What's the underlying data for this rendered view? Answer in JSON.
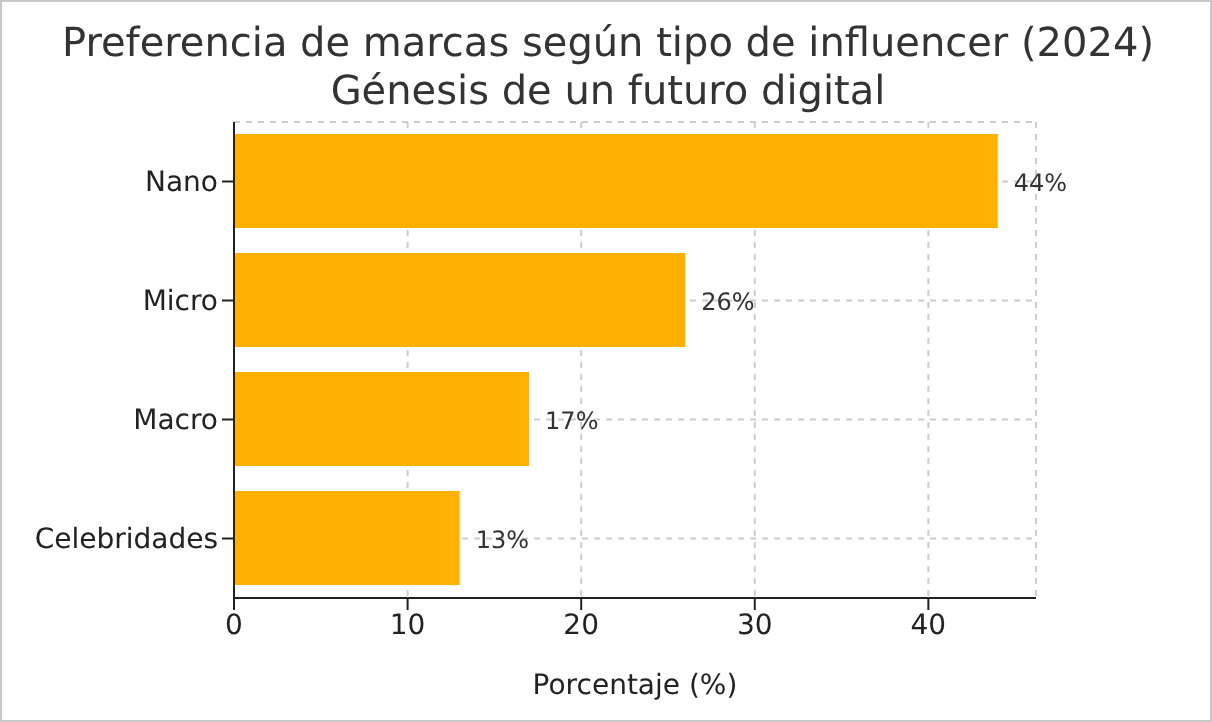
{
  "chart_data": {
    "type": "bar",
    "orientation": "horizontal",
    "title": "Preferencia de marcas según tipo de influencer (2024)",
    "subtitle": "Génesis de un futuro digital",
    "xlabel": "Porcentaje (%)",
    "categories": [
      "Nano",
      "Micro",
      "Macro",
      "Celebridades"
    ],
    "values": [
      44,
      26,
      17,
      13
    ],
    "value_labels": [
      "44%",
      "26%",
      "17%",
      "13%"
    ],
    "color": "#ffb000",
    "xlim": [
      0,
      46.2
    ],
    "xticks": [
      0,
      10,
      20,
      30,
      40
    ],
    "grid": true
  }
}
